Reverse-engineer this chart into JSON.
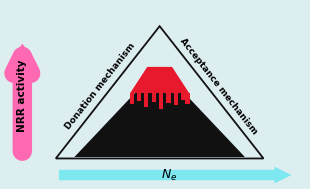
{
  "bg_color": "#ddeef0",
  "triangle_color": "#111111",
  "mountain_black_color": "#111111",
  "mountain_red_color": "#e8192c",
  "left_arrow_color": "#ff69b4",
  "bottom_arrow_color": "#7de8f0",
  "left_arrow_label": "NRR activity",
  "bottom_arrow_label_N": "N",
  "bottom_arrow_label_e": "e",
  "left_text": "Donation mechanism",
  "right_text": "Acceptance mechanism",
  "label_fontsize": 6.5,
  "axis_label_fontsize": 7.5,
  "fig_width": 3.1,
  "fig_height": 1.89,
  "dpi": 100
}
